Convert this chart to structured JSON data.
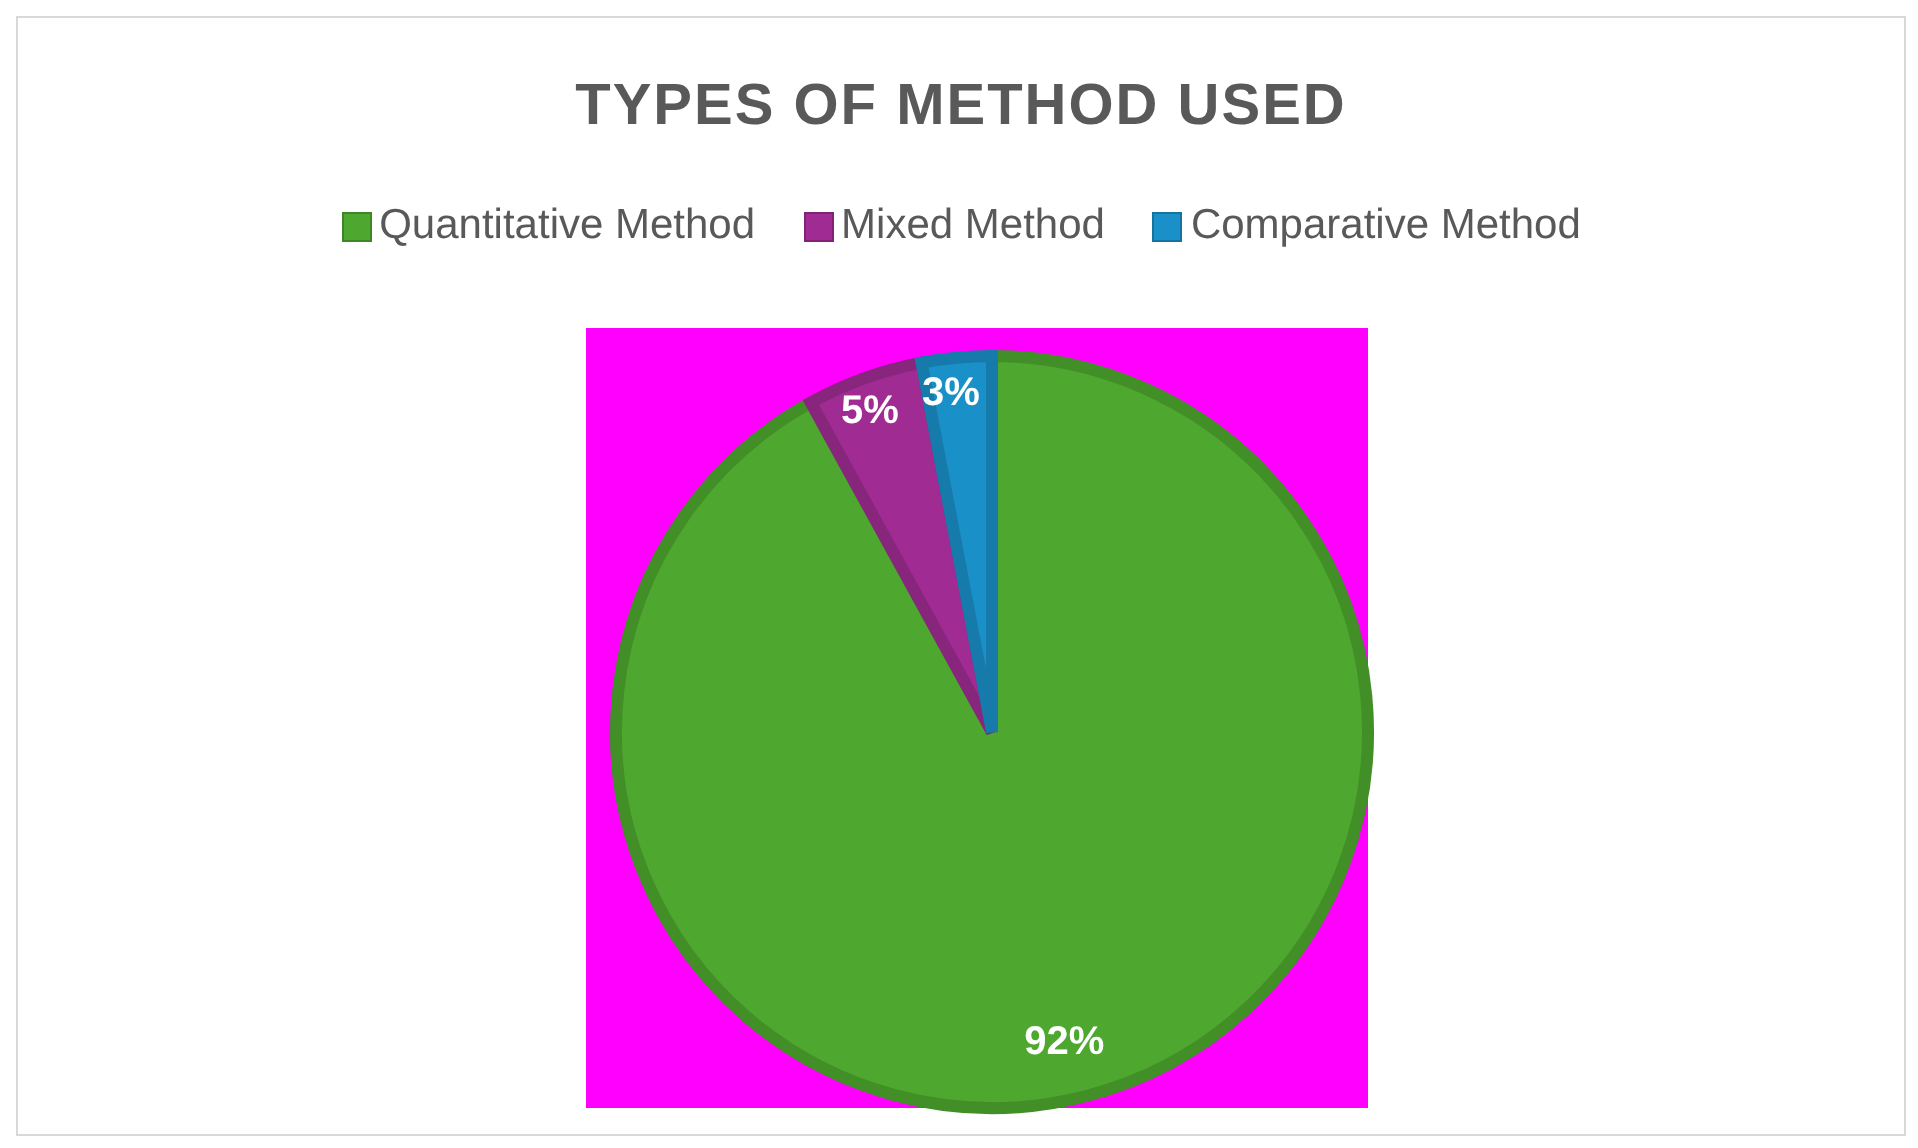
{
  "chart_data": {
    "type": "pie",
    "title": "TYPES OF METHOD USED",
    "categories": [
      "Quantitative Method",
      "Mixed Method",
      "Comparative Method"
    ],
    "values": [
      92,
      5,
      3
    ],
    "colors": [
      "#4ea72e",
      "#a02b93",
      "#1a90c8"
    ],
    "value_labels": [
      "92%",
      "5%",
      "3%"
    ],
    "legend": "top"
  }
}
